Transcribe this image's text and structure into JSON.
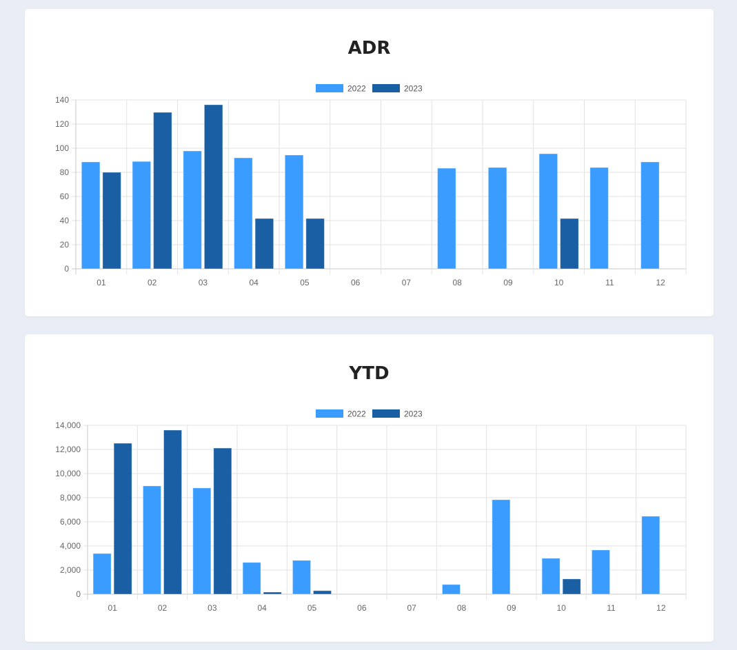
{
  "colors": {
    "2022": "#3a9cff",
    "2023": "#1a5fa3",
    "grid": "#e2e2e2"
  },
  "chart_data": [
    {
      "type": "bar",
      "title": "ADR",
      "categories": [
        "01",
        "02",
        "03",
        "04",
        "05",
        "06",
        "07",
        "08",
        "09",
        "10",
        "11",
        "12"
      ],
      "series": [
        {
          "name": "2022",
          "values": [
            88.6,
            89,
            97.7,
            92,
            94.3,
            null,
            null,
            83.4,
            84,
            95.4,
            84,
            88.6
          ]
        },
        {
          "name": "2023",
          "values": [
            80,
            129.7,
            136,
            41.7,
            41.7,
            null,
            null,
            null,
            null,
            41.7,
            null,
            null
          ]
        }
      ],
      "yticks": [
        "0",
        "20",
        "40",
        "60",
        "80",
        "100",
        "120",
        "140"
      ],
      "ylim": [
        0,
        140
      ],
      "legend": "top-center",
      "grid": true
    },
    {
      "type": "bar",
      "title": "YTD",
      "categories": [
        "01",
        "02",
        "03",
        "04",
        "05",
        "06",
        "07",
        "08",
        "09",
        "10",
        "11",
        "12"
      ],
      "series": [
        {
          "name": "2022",
          "values": [
            3370,
            8970,
            8800,
            2630,
            2800,
            null,
            null,
            800,
            7830,
            2970,
            3660,
            6460
          ]
        },
        {
          "name": "2023",
          "values": [
            12510,
            13600,
            12110,
            170,
            290,
            null,
            null,
            null,
            null,
            1260,
            null,
            null
          ]
        }
      ],
      "yticks": [
        "0",
        "2,000",
        "4,000",
        "6,000",
        "8,000",
        "10,000",
        "12,000",
        "14,000"
      ],
      "ylim": [
        0,
        14000
      ],
      "legend": "top-center",
      "grid": true
    }
  ]
}
